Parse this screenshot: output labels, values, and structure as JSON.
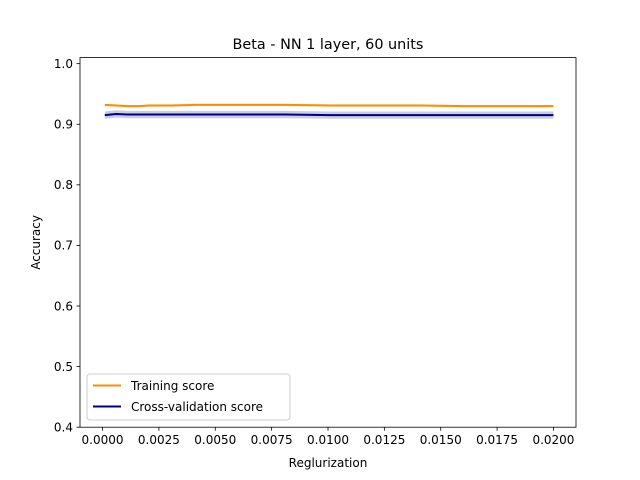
{
  "chart_data": {
    "type": "line",
    "title": "Beta - NN 1 layer, 60 units",
    "xlabel": "Reglurization",
    "ylabel": "Accuracy",
    "xlim": [
      -0.001,
      0.021
    ],
    "ylim": [
      0.4,
      1.01
    ],
    "xticks": [
      "0.0000",
      "0.0025",
      "0.0050",
      "0.0075",
      "0.0100",
      "0.0125",
      "0.0150",
      "0.0175",
      "0.0200"
    ],
    "yticks": [
      "0.4",
      "0.5",
      "0.6",
      "0.7",
      "0.8",
      "0.9",
      "1.0"
    ],
    "grid": false,
    "legend_position": "lower left",
    "x": [
      0.0001,
      0.0006,
      0.0011,
      0.0016,
      0.0021,
      0.0031,
      0.0041,
      0.0051,
      0.0061,
      0.0081,
      0.0101,
      0.0121,
      0.0141,
      0.0161,
      0.0181,
      0.02
    ],
    "series": [
      {
        "name": "Training score",
        "color": "#ff8c00",
        "band_color": "#ff8c00",
        "values": [
          0.932,
          0.931,
          0.93,
          0.93,
          0.931,
          0.931,
          0.932,
          0.932,
          0.932,
          0.932,
          0.931,
          0.931,
          0.931,
          0.93,
          0.93,
          0.93
        ],
        "band": 0.002
      },
      {
        "name": "Cross-validation score",
        "color": "#000080",
        "band_color": "#000080",
        "values": [
          0.915,
          0.917,
          0.916,
          0.916,
          0.916,
          0.916,
          0.916,
          0.916,
          0.916,
          0.916,
          0.915,
          0.915,
          0.915,
          0.915,
          0.915,
          0.915
        ],
        "band": 0.006
      }
    ]
  }
}
